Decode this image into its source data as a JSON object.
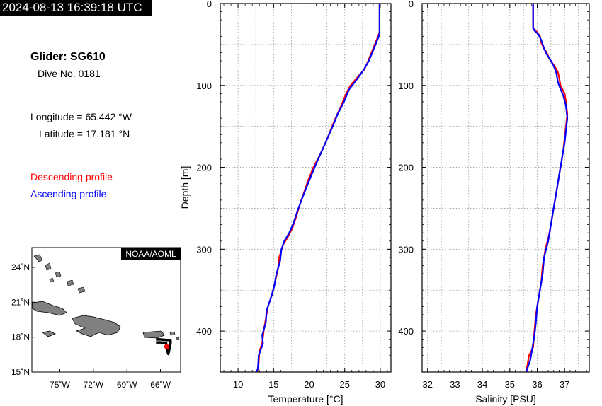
{
  "header": {
    "timestamp": "2024-08-13 16:39:18 UTC"
  },
  "info": {
    "glider": "Glider: SG610",
    "dive": "Dive No. 0181",
    "longitude": "Longitude = 65.442 °W",
    "latitude": "Latitude = 17.181 °N"
  },
  "legend": {
    "descending": "Descending profile",
    "ascending": "Ascending profile"
  },
  "colors": {
    "descending": "#ff0000",
    "ascending": "#0000ff",
    "land": "#808080",
    "track": "#000000"
  },
  "map": {
    "badge": "NOAA/AOML",
    "lon_ticks": [
      "75˚W",
      "72˚W",
      "69˚W",
      "66˚W"
    ],
    "lon_values": [
      -75,
      -72,
      -69,
      -66
    ],
    "lat_ticks": [
      "24˚N",
      "21˚N",
      "18˚N",
      "15˚N"
    ],
    "lat_values": [
      24,
      21,
      18,
      15
    ],
    "lon_range": [
      -77.5,
      -64.2
    ],
    "lat_range": [
      15,
      25.7
    ],
    "glider_position": {
      "lon": -65.442,
      "lat": 17.181
    },
    "track": [
      {
        "lon": -66.4,
        "lat": 17.8
      },
      {
        "lon": -66.0,
        "lat": 17.8
      },
      {
        "lon": -65.5,
        "lat": 17.75
      },
      {
        "lon": -65.1,
        "lat": 17.75
      },
      {
        "lon": -65.1,
        "lat": 17.5
      },
      {
        "lon": -65.2,
        "lat": 17.0
      },
      {
        "lon": -65.3,
        "lat": 16.55
      },
      {
        "lon": -65.45,
        "lat": 17.0
      },
      {
        "lon": -65.5,
        "lat": 17.5
      },
      {
        "lon": -66.0,
        "lat": 17.55
      },
      {
        "lon": -66.4,
        "lat": 17.55
      }
    ]
  },
  "chart_data": [
    {
      "type": "line",
      "xlabel": "Temperature [°C]",
      "ylabel": "Depth [m]",
      "xlim": [
        7.5,
        31.5
      ],
      "ylim": [
        0,
        450
      ],
      "y_inverted": true,
      "xticks": [
        10,
        15,
        20,
        25,
        30
      ],
      "yticks": [
        0,
        100,
        200,
        300,
        400
      ],
      "grid": true,
      "series": [
        {
          "name": "Descending profile",
          "points": [
            [
              29.9,
              0
            ],
            [
              29.9,
              35
            ],
            [
              29.7,
              40
            ],
            [
              29.0,
              55
            ],
            [
              28.3,
              70
            ],
            [
              27.8,
              80
            ],
            [
              26.8,
              90
            ],
            [
              25.8,
              100
            ],
            [
              25.2,
              110
            ],
            [
              24.5,
              125
            ],
            [
              23.7,
              140
            ],
            [
              23.0,
              155
            ],
            [
              22.3,
              170
            ],
            [
              21.5,
              185
            ],
            [
              20.6,
              200
            ],
            [
              19.9,
              215
            ],
            [
              19.3,
              230
            ],
            [
              18.7,
              245
            ],
            [
              18.2,
              260
            ],
            [
              17.6,
              275
            ],
            [
              17.0,
              285
            ],
            [
              16.3,
              295
            ],
            [
              15.8,
              310
            ],
            [
              15.6,
              325
            ],
            [
              15.2,
              340
            ],
            [
              14.8,
              355
            ],
            [
              14.2,
              370
            ],
            [
              13.9,
              385
            ],
            [
              13.6,
              400
            ],
            [
              13.4,
              415
            ],
            [
              13.0,
              425
            ],
            [
              12.9,
              440
            ],
            [
              12.7,
              450
            ]
          ]
        },
        {
          "name": "Ascending profile",
          "points": [
            [
              29.9,
              0
            ],
            [
              29.9,
              35
            ],
            [
              29.8,
              40
            ],
            [
              29.1,
              55
            ],
            [
              28.4,
              70
            ],
            [
              27.6,
              82
            ],
            [
              26.5,
              95
            ],
            [
              25.6,
              105
            ],
            [
              24.9,
              120
            ],
            [
              24.0,
              135
            ],
            [
              23.4,
              148
            ],
            [
              22.7,
              162
            ],
            [
              21.9,
              178
            ],
            [
              21.0,
              195
            ],
            [
              20.3,
              210
            ],
            [
              19.6,
              225
            ],
            [
              19.0,
              238
            ],
            [
              18.4,
              252
            ],
            [
              17.8,
              268
            ],
            [
              17.2,
              280
            ],
            [
              16.5,
              290
            ],
            [
              16.1,
              300
            ],
            [
              15.9,
              315
            ],
            [
              15.4,
              330
            ],
            [
              15.1,
              345
            ],
            [
              14.6,
              360
            ],
            [
              14.0,
              375
            ],
            [
              13.9,
              390
            ],
            [
              13.4,
              405
            ],
            [
              13.5,
              415
            ],
            [
              12.9,
              430
            ],
            [
              12.8,
              445
            ],
            [
              12.6,
              450
            ]
          ]
        }
      ]
    },
    {
      "type": "line",
      "xlabel": "Salinity [PSU]",
      "ylabel": "",
      "xlim": [
        31.8,
        37.9
      ],
      "ylim": [
        0,
        450
      ],
      "y_inverted": true,
      "xticks": [
        32,
        33,
        34,
        35,
        36,
        37
      ],
      "yticks": [
        0,
        100,
        200,
        300,
        400
      ],
      "grid": true,
      "series": [
        {
          "name": "Descending profile",
          "points": [
            [
              35.85,
              0
            ],
            [
              35.85,
              30
            ],
            [
              36.0,
              35
            ],
            [
              36.1,
              40
            ],
            [
              36.15,
              48
            ],
            [
              36.25,
              55
            ],
            [
              36.35,
              60
            ],
            [
              36.45,
              68
            ],
            [
              36.6,
              75
            ],
            [
              36.75,
              83
            ],
            [
              36.8,
              90
            ],
            [
              36.85,
              100
            ],
            [
              37.0,
              110
            ],
            [
              37.05,
              120
            ],
            [
              37.1,
              135
            ],
            [
              37.05,
              150
            ],
            [
              37.0,
              165
            ],
            [
              36.95,
              180
            ],
            [
              36.85,
              200
            ],
            [
              36.75,
              220
            ],
            [
              36.65,
              240
            ],
            [
              36.55,
              260
            ],
            [
              36.45,
              280
            ],
            [
              36.3,
              300
            ],
            [
              36.2,
              320
            ],
            [
              36.15,
              340
            ],
            [
              36.05,
              360
            ],
            [
              35.95,
              380
            ],
            [
              35.9,
              400
            ],
            [
              35.85,
              420
            ],
            [
              35.7,
              430
            ],
            [
              35.6,
              450
            ]
          ]
        },
        {
          "name": "Ascending profile",
          "points": [
            [
              35.85,
              0
            ],
            [
              35.85,
              30
            ],
            [
              35.9,
              33
            ],
            [
              36.05,
              38
            ],
            [
              36.15,
              45
            ],
            [
              36.25,
              55
            ],
            [
              36.35,
              62
            ],
            [
              36.5,
              70
            ],
            [
              36.6,
              76
            ],
            [
              36.7,
              85
            ],
            [
              36.75,
              95
            ],
            [
              36.8,
              100
            ],
            [
              36.95,
              112
            ],
            [
              37.05,
              125
            ],
            [
              37.1,
              140
            ],
            [
              37.05,
              155
            ],
            [
              37.0,
              170
            ],
            [
              36.9,
              190
            ],
            [
              36.8,
              210
            ],
            [
              36.7,
              230
            ],
            [
              36.6,
              250
            ],
            [
              36.5,
              270
            ],
            [
              36.4,
              290
            ],
            [
              36.25,
              310
            ],
            [
              36.2,
              330
            ],
            [
              36.1,
              350
            ],
            [
              36.0,
              370
            ],
            [
              35.95,
              390
            ],
            [
              35.9,
              405
            ],
            [
              35.8,
              425
            ],
            [
              35.75,
              435
            ],
            [
              35.6,
              450
            ]
          ]
        }
      ]
    }
  ]
}
